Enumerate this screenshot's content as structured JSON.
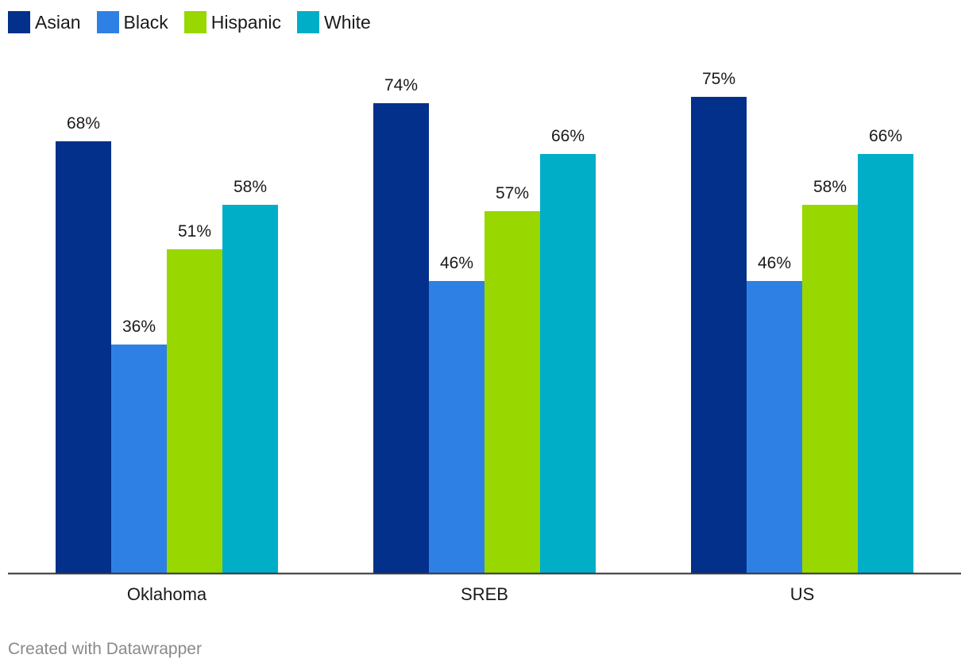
{
  "chart_data": {
    "type": "bar",
    "categories": [
      "Oklahoma",
      "SREB",
      "US"
    ],
    "series": [
      {
        "name": "Asian",
        "color": "#03308a",
        "values": [
          68,
          74,
          75
        ],
        "labels": [
          "68%",
          "74%",
          "75%"
        ]
      },
      {
        "name": "Black",
        "color": "#2f80e4",
        "values": [
          36,
          46,
          46
        ],
        "labels": [
          "36%",
          "46%",
          "46%"
        ]
      },
      {
        "name": "Hispanic",
        "color": "#98d700",
        "values": [
          51,
          57,
          58
        ],
        "labels": [
          "51%",
          "57%",
          "58%"
        ]
      },
      {
        "name": "White",
        "color": "#00aec7",
        "values": [
          58,
          66,
          66
        ],
        "labels": [
          "58%",
          "66%",
          "66%"
        ]
      }
    ],
    "ylim": [
      0,
      100
    ],
    "grid": false,
    "legend": "top-left",
    "title": "",
    "xlabel": "",
    "ylabel": ""
  },
  "footer": {
    "credit": "Created with Datawrapper"
  }
}
